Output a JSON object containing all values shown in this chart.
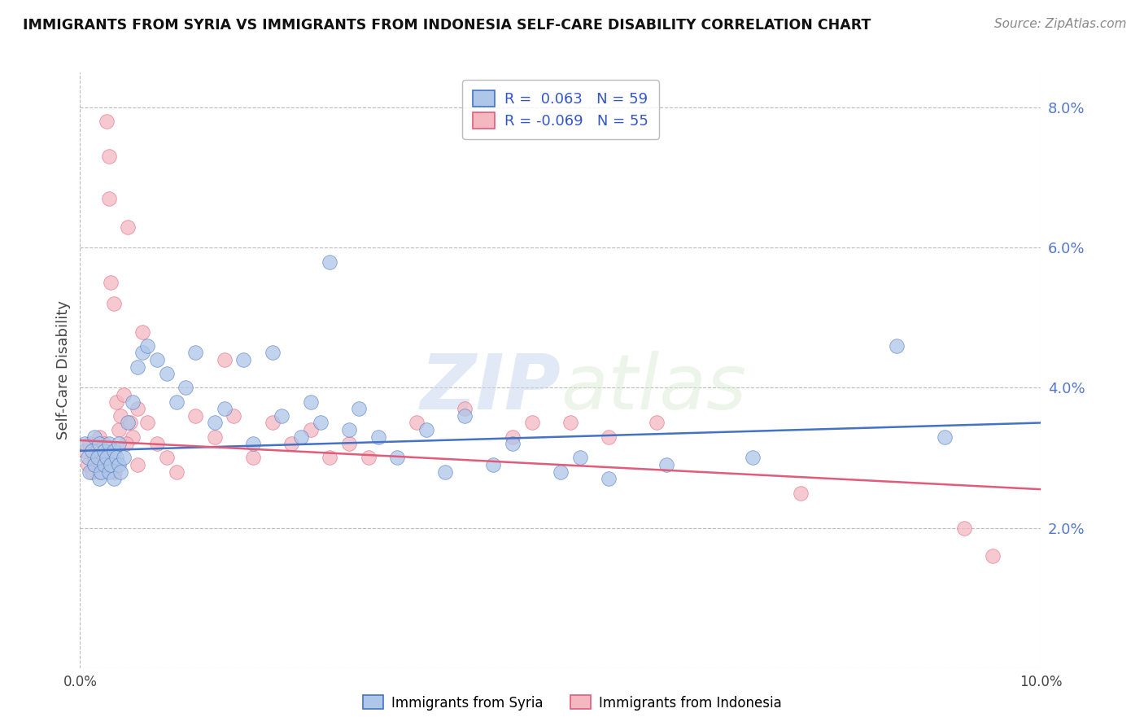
{
  "title": "IMMIGRANTS FROM SYRIA VS IMMIGRANTS FROM INDONESIA SELF-CARE DISABILITY CORRELATION CHART",
  "source": "Source: ZipAtlas.com",
  "ylabel": "Self-Care Disability",
  "xlim": [
    0.0,
    10.0
  ],
  "ylim": [
    0.0,
    8.5
  ],
  "yticks": [
    0.0,
    2.0,
    4.0,
    6.0,
    8.0
  ],
  "ytick_labels": [
    "",
    "2.0%",
    "4.0%",
    "6.0%",
    "8.0%"
  ],
  "legend_r_syria": "0.063",
  "legend_n_syria": "59",
  "legend_r_indonesia": "-0.069",
  "legend_n_indonesia": "55",
  "color_syria": "#aec6e8",
  "color_indonesia": "#f4b8c1",
  "line_color_syria": "#4472c4",
  "line_color_indonesia": "#e05c7a",
  "background_color": "#ffffff",
  "grid_color": "#bbbbbb",
  "syria_x": [
    0.05,
    0.08,
    0.1,
    0.12,
    0.15,
    0.15,
    0.18,
    0.2,
    0.2,
    0.22,
    0.25,
    0.25,
    0.28,
    0.3,
    0.3,
    0.32,
    0.35,
    0.35,
    0.38,
    0.4,
    0.4,
    0.42,
    0.45,
    0.5,
    0.55,
    0.6,
    0.65,
    0.7,
    0.8,
    0.9,
    1.0,
    1.1,
    1.2,
    1.4,
    1.5,
    1.7,
    1.8,
    2.0,
    2.1,
    2.3,
    2.4,
    2.5,
    2.6,
    2.8,
    2.9,
    3.1,
    3.3,
    3.6,
    3.8,
    4.0,
    4.3,
    4.5,
    5.0,
    5.2,
    5.5,
    6.1,
    7.0,
    8.5,
    9.0
  ],
  "syria_y": [
    3.2,
    3.0,
    2.8,
    3.1,
    2.9,
    3.3,
    3.0,
    2.7,
    3.2,
    2.8,
    3.1,
    2.9,
    3.0,
    2.8,
    3.2,
    2.9,
    3.1,
    2.7,
    3.0,
    2.9,
    3.2,
    2.8,
    3.0,
    3.5,
    3.8,
    4.3,
    4.5,
    4.6,
    4.4,
    4.2,
    3.8,
    4.0,
    4.5,
    3.5,
    3.7,
    4.4,
    3.2,
    4.5,
    3.6,
    3.3,
    3.8,
    3.5,
    5.8,
    3.4,
    3.7,
    3.3,
    3.0,
    3.4,
    2.8,
    3.6,
    2.9,
    3.2,
    2.8,
    3.0,
    2.7,
    2.9,
    3.0,
    4.6,
    3.3
  ],
  "indonesia_x": [
    0.05,
    0.08,
    0.1,
    0.12,
    0.15,
    0.15,
    0.18,
    0.2,
    0.2,
    0.22,
    0.25,
    0.25,
    0.28,
    0.3,
    0.3,
    0.32,
    0.35,
    0.38,
    0.4,
    0.42,
    0.45,
    0.5,
    0.55,
    0.6,
    0.65,
    0.7,
    0.8,
    0.9,
    1.0,
    1.2,
    1.4,
    1.5,
    1.6,
    1.8,
    2.0,
    2.2,
    2.4,
    2.6,
    2.8,
    3.0,
    3.5,
    4.0,
    4.5,
    4.7,
    5.1,
    5.5,
    6.0,
    7.5,
    9.2,
    9.5,
    0.33,
    0.36,
    0.48,
    0.52,
    0.6
  ],
  "indonesia_y": [
    3.1,
    2.9,
    3.2,
    2.8,
    3.0,
    2.9,
    3.1,
    2.8,
    3.3,
    2.9,
    3.0,
    3.2,
    7.8,
    7.3,
    6.7,
    5.5,
    5.2,
    3.8,
    3.4,
    3.6,
    3.9,
    6.3,
    3.3,
    3.7,
    4.8,
    3.5,
    3.2,
    3.0,
    2.8,
    3.6,
    3.3,
    4.4,
    3.6,
    3.0,
    3.5,
    3.2,
    3.4,
    3.0,
    3.2,
    3.0,
    3.5,
    3.7,
    3.3,
    3.5,
    3.5,
    3.3,
    3.5,
    2.5,
    2.0,
    1.6,
    3.0,
    2.8,
    3.2,
    3.5,
    2.9
  ],
  "syria_trend_x0": 0.0,
  "syria_trend_y0": 3.1,
  "syria_trend_x1": 10.0,
  "syria_trend_y1": 3.5,
  "indonesia_trend_x0": 0.0,
  "indonesia_trend_y0": 3.25,
  "indonesia_trend_x1": 10.0,
  "indonesia_trend_y1": 2.55
}
